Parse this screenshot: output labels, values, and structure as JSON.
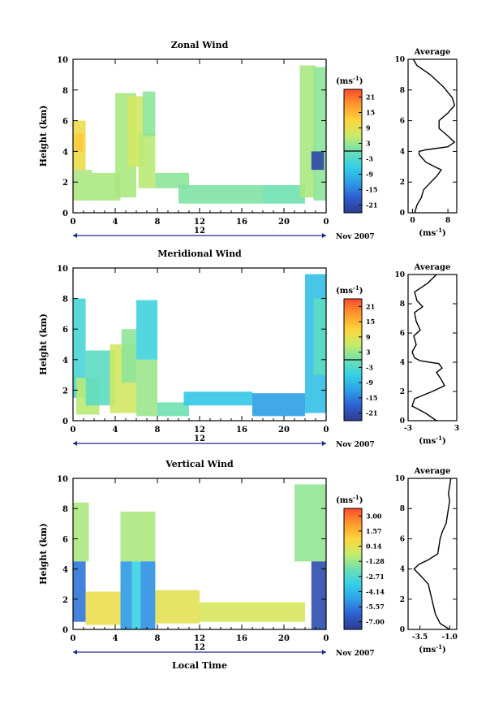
{
  "chart_data": [
    {
      "type": "heatmap",
      "title": "Zonal Wind",
      "ylabel": "Height (km)",
      "xlabel": "",
      "x_ticks": [
        "0",
        "4",
        "8",
        "12",
        "16",
        "20",
        "0"
      ],
      "y_ticks": [
        "0",
        "2",
        "4",
        "6",
        "8",
        "10"
      ],
      "xlim": [
        0,
        24
      ],
      "ylim": [
        0,
        10
      ],
      "day_label": "12",
      "date_label": "Nov 2007",
      "colorbar": {
        "unit_base": "(ms",
        "unit_exp": "-1",
        "unit_close": ")",
        "labels": [
          "21",
          "15",
          "9",
          "3",
          "-3",
          "-9",
          "-15",
          "-21"
        ],
        "min": -24,
        "max": 24,
        "zero_line": true
      },
      "regions": [
        {
          "x0": 0.0,
          "x1": 1.2,
          "y0": 2.8,
          "y1": 6.0,
          "value": 10
        },
        {
          "x0": 0.2,
          "x1": 1.0,
          "y0": 4.0,
          "y1": 5.2,
          "value": 13
        },
        {
          "x0": 0.0,
          "x1": 1.8,
          "y0": 0.8,
          "y1": 2.8,
          "value": 4
        },
        {
          "x0": 1.8,
          "x1": 4.5,
          "y0": 0.8,
          "y1": 2.6,
          "value": 4
        },
        {
          "x0": 4.0,
          "x1": 6.0,
          "y0": 1.0,
          "y1": 7.8,
          "value": 4
        },
        {
          "x0": 5.2,
          "x1": 6.8,
          "y0": 3.0,
          "y1": 7.6,
          "value": 7
        },
        {
          "x0": 6.2,
          "x1": 7.8,
          "y0": 1.6,
          "y1": 5.2,
          "value": 5
        },
        {
          "x0": 6.6,
          "x1": 7.8,
          "y0": 5.0,
          "y1": 7.9,
          "value": 2
        },
        {
          "x0": 7.8,
          "x1": 11.0,
          "y0": 1.6,
          "y1": 2.6,
          "value": 2
        },
        {
          "x0": 10.0,
          "x1": 18.0,
          "y0": 0.6,
          "y1": 1.8,
          "value": 1
        },
        {
          "x0": 18.0,
          "x1": 22.0,
          "y0": 0.6,
          "y1": 1.8,
          "value": 0
        },
        {
          "x0": 21.5,
          "x1": 23.0,
          "y0": 1.0,
          "y1": 9.6,
          "value": 4
        },
        {
          "x0": 22.8,
          "x1": 24.0,
          "y0": 0.8,
          "y1": 9.5,
          "value": 2
        },
        {
          "x0": 22.6,
          "x1": 23.8,
          "y0": 2.8,
          "y1": 4.0,
          "value": -22
        }
      ],
      "average": {
        "title": "Average",
        "x_ticks": [
          "0",
          "8"
        ],
        "xlim": [
          -1,
          10
        ],
        "x": [
          0.5,
          1,
          2,
          2.5,
          5.5,
          6.5,
          5,
          3,
          1.5,
          1.5,
          3,
          8,
          9.5,
          8,
          6,
          6,
          8,
          9.5,
          9,
          7,
          4,
          1,
          0.2
        ],
        "y": [
          0,
          0.5,
          1,
          1.5,
          2.4,
          2.8,
          3.0,
          3.3,
          3.8,
          4.0,
          4.1,
          4.3,
          4.6,
          5.0,
          5.5,
          6.0,
          6.5,
          7.0,
          7.5,
          8.2,
          9.0,
          9.6,
          10
        ]
      }
    },
    {
      "type": "heatmap",
      "title": "Meridional Wind",
      "ylabel": "Height (km)",
      "xlabel": "",
      "x_ticks": [
        "0",
        "4",
        "8",
        "12",
        "16",
        "20",
        "0"
      ],
      "y_ticks": [
        "0",
        "2",
        "4",
        "6",
        "8",
        "10"
      ],
      "xlim": [
        0,
        24
      ],
      "ylim": [
        0,
        10
      ],
      "day_label": "12",
      "date_label": "Nov 2007",
      "colorbar": {
        "unit_base": "(ms",
        "unit_exp": "-1",
        "unit_close": ")",
        "labels": [
          "21",
          "15",
          "9",
          "3",
          "-3",
          "-9",
          "-15",
          "-21"
        ],
        "min": -24,
        "max": 24,
        "zero_line": true
      },
      "regions": [
        {
          "x0": 0.0,
          "x1": 1.2,
          "y0": 1.5,
          "y1": 8.0,
          "value": -4
        },
        {
          "x0": 0.3,
          "x1": 2.5,
          "y0": 0.4,
          "y1": 2.8,
          "value": 5
        },
        {
          "x0": 1.2,
          "x1": 4.0,
          "y0": 1.0,
          "y1": 4.6,
          "value": -2
        },
        {
          "x0": 3.5,
          "x1": 6.0,
          "y0": 0.5,
          "y1": 5.0,
          "value": 7
        },
        {
          "x0": 4.6,
          "x1": 6.0,
          "y0": 2.5,
          "y1": 6.0,
          "value": 2
        },
        {
          "x0": 6.0,
          "x1": 8.0,
          "y0": 0.3,
          "y1": 4.0,
          "value": 3
        },
        {
          "x0": 6.0,
          "x1": 8.0,
          "y0": 4.0,
          "y1": 7.9,
          "value": -5
        },
        {
          "x0": 8.0,
          "x1": 11.0,
          "y0": 0.3,
          "y1": 1.2,
          "value": 0
        },
        {
          "x0": 10.5,
          "x1": 17.0,
          "y0": 1.0,
          "y1": 1.9,
          "value": -7
        },
        {
          "x0": 17.0,
          "x1": 22.0,
          "y0": 0.3,
          "y1": 1.8,
          "value": -12
        },
        {
          "x0": 22.0,
          "x1": 24.0,
          "y0": 0.5,
          "y1": 9.6,
          "value": -8
        },
        {
          "x0": 22.8,
          "x1": 24.0,
          "y0": 3.0,
          "y1": 8.0,
          "value": -2
        }
      ],
      "average": {
        "title": "Average",
        "x_ticks": [
          "-3",
          "3"
        ],
        "xlim": [
          -3,
          3
        ],
        "x": [
          0.5,
          -0.8,
          -2.5,
          -2.2,
          0,
          1.5,
          1,
          0.5,
          1.2,
          0.8,
          -1.5,
          -2.2,
          -2.5,
          -2.0,
          -2.3,
          -1.5,
          -2.0,
          -2.2,
          -1.2,
          -1.9,
          -2.2,
          -0.6,
          0.5
        ],
        "y": [
          0,
          0.5,
          1.0,
          1.5,
          2.0,
          2.4,
          2.9,
          3.3,
          3.6,
          3.9,
          4.1,
          4.3,
          4.7,
          5.2,
          5.8,
          6.2,
          6.8,
          7.4,
          7.8,
          8.2,
          8.8,
          9.4,
          10
        ]
      }
    },
    {
      "type": "heatmap",
      "title": "Vertical Wind",
      "ylabel": "Height (km)",
      "xlabel": "Local Time",
      "x_ticks": [
        "0",
        "4",
        "8",
        "12",
        "16",
        "20",
        "0"
      ],
      "y_ticks": [
        "0",
        "2",
        "4",
        "6",
        "8",
        "10"
      ],
      "xlim": [
        0,
        24
      ],
      "ylim": [
        0,
        10
      ],
      "day_label": "12",
      "date_label": "Nov 2007",
      "colorbar": {
        "unit_base": "(ms",
        "unit_exp": "-1",
        "unit_close": ")",
        "labels": [
          "3.00",
          "1.57",
          "0.14",
          "-1.28",
          "-2.71",
          "-4.14",
          "-5.57",
          "-7.00"
        ],
        "min": -7.7,
        "max": 3.7,
        "zero_line": false
      },
      "regions": [
        {
          "x0": 0.0,
          "x1": 1.5,
          "y0": 4.5,
          "y1": 8.4,
          "value": -1.0
        },
        {
          "x0": 0.0,
          "x1": 1.2,
          "y0": 0.5,
          "y1": 4.5,
          "value": -5.8
        },
        {
          "x0": 1.2,
          "x1": 4.5,
          "y0": 0.3,
          "y1": 2.5,
          "value": 0.3
        },
        {
          "x0": 4.5,
          "x1": 7.8,
          "y0": 4.5,
          "y1": 7.8,
          "value": -1.0
        },
        {
          "x0": 4.5,
          "x1": 5.6,
          "y0": 0.0,
          "y1": 4.5,
          "value": -5.0
        },
        {
          "x0": 5.6,
          "x1": 6.4,
          "y0": 0.0,
          "y1": 4.5,
          "value": -3.3
        },
        {
          "x0": 6.4,
          "x1": 7.8,
          "y0": 0.0,
          "y1": 4.5,
          "value": -5.2
        },
        {
          "x0": 7.8,
          "x1": 12.0,
          "y0": 0.4,
          "y1": 2.6,
          "value": 0.1
        },
        {
          "x0": 12.0,
          "x1": 22.0,
          "y0": 0.5,
          "y1": 1.8,
          "value": -0.2
        },
        {
          "x0": 21.0,
          "x1": 24.0,
          "y0": 4.5,
          "y1": 9.6,
          "value": -1.4
        },
        {
          "x0": 22.6,
          "x1": 24.0,
          "y0": 0.0,
          "y1": 4.5,
          "value": -7.0
        }
      ],
      "average": {
        "title": "Average",
        "x_ticks": [
          "-3.5",
          "-1.0"
        ],
        "xlim": [
          -4.5,
          -0.4
        ],
        "x": [
          -1.0,
          -1.8,
          -2.2,
          -2.5,
          -2.8,
          -3.5,
          -4.0,
          -3.6,
          -2.8,
          -2.0,
          -1.8,
          -1.6,
          -1.3,
          -1.2,
          -1.0,
          -1.1,
          -0.9
        ],
        "y": [
          0,
          0.4,
          1.0,
          2.0,
          3.0,
          3.6,
          4.0,
          4.3,
          4.6,
          5.0,
          6.0,
          6.5,
          7.0,
          7.5,
          8.5,
          9.0,
          10
        ]
      }
    }
  ]
}
